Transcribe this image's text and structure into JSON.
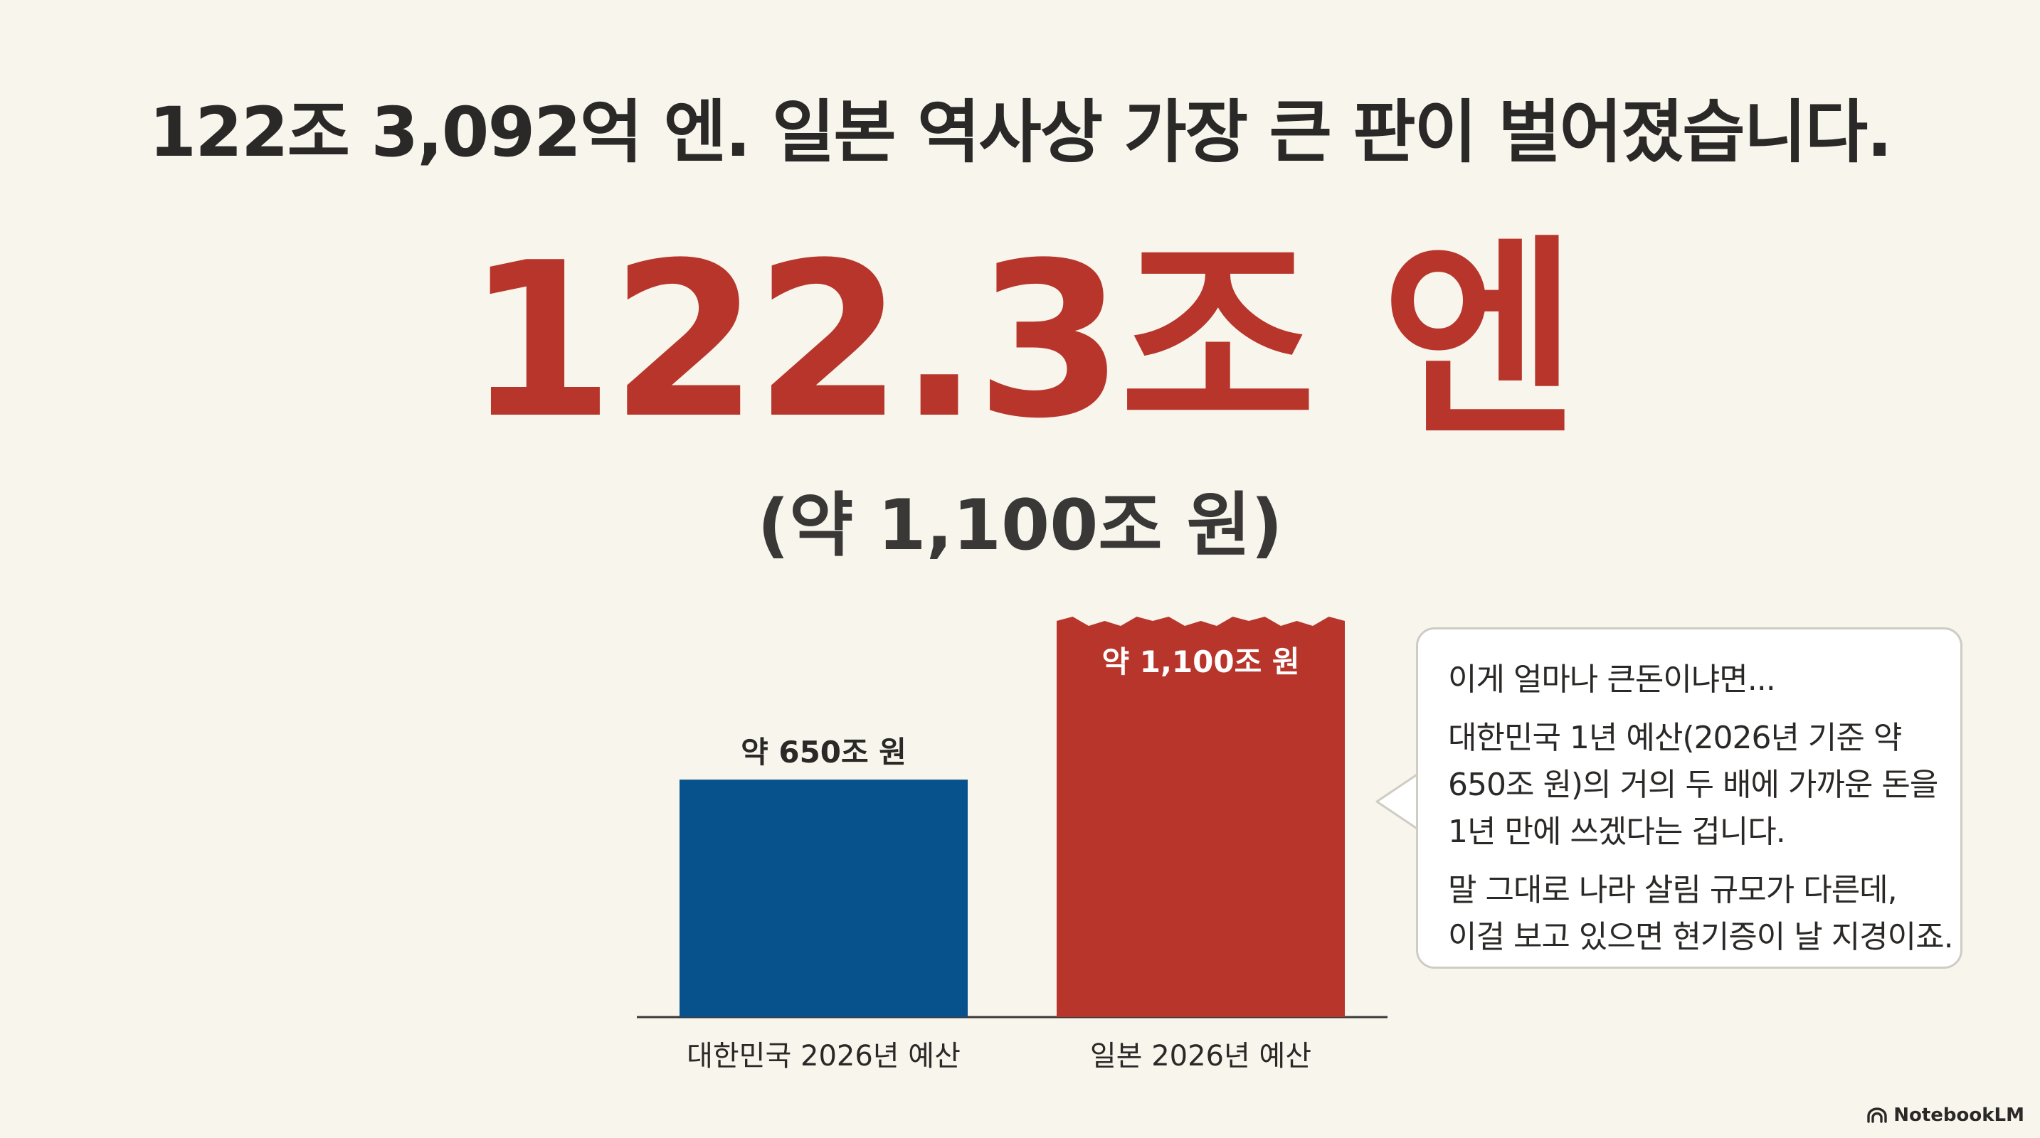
{
  "headline": "122조 3,092억 엔. 일본 역사상 가장 큰 판이 벌어졌습니다.",
  "big_number": "122.3조 엔",
  "sub_number": "(약 1,100조 원)",
  "chart_data": {
    "type": "bar",
    "categories": [
      "대한민국 2026년 예산",
      "일본 2026년 예산"
    ],
    "values": [
      650,
      1100
    ],
    "value_labels": [
      "약 650조 원",
      "약 1,100조 원"
    ],
    "colors": [
      "#07528c",
      "#b8352b"
    ],
    "ylim": [
      0,
      1100
    ],
    "grid": false,
    "label_position": [
      "above",
      "inside-top"
    ]
  },
  "bubble": {
    "line1": "이게 얼마나 큰돈이냐면...",
    "paragraph2": "대한민국 1년 예산(2026년 기준 약 650조 원)의 거의 두 배에 가까운 돈을 1년 만에 쓰겠다는 겁니다.",
    "paragraph2_lines": [
      "대한민국 1년 예산(2026년 기준 약",
      "650조 원)의 거의 두 배에 가까운 돈을",
      "1년 만에 쓰겠다는 겁니다."
    ],
    "paragraph3_lines": [
      "말 그대로 나라 살림 규모가 다른데,",
      "이걸 보고 있으면 현기증이 날 지경이죠."
    ]
  },
  "brand": {
    "name": "NotebookLM",
    "icon": "notebooklm-logo-icon"
  },
  "colors": {
    "background": "#f7f5ec",
    "accent_red": "#b8352b",
    "korea_blue": "#07528c"
  }
}
